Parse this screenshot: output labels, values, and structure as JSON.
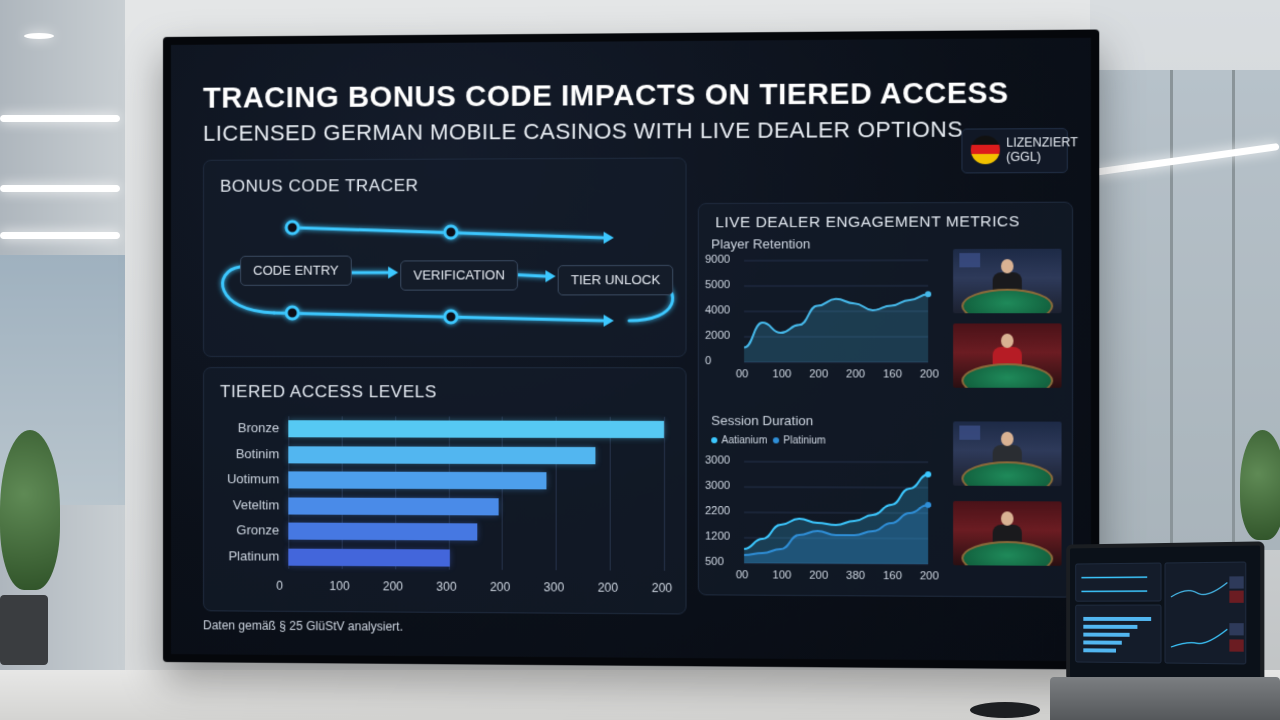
{
  "dashboard": {
    "title": "TRACING BONUS CODE IMPACTS ON TIERED ACCESS",
    "subtitle": "LICENSED GERMAN MOBILE CASINOS WITH LIVE DEALER OPTIONS",
    "badge": {
      "line1": "LIZENZIERT",
      "line2": "(GGL)",
      "icon": "germany-flag-icon"
    },
    "footnote": "Daten gemäß § 25 GlüStV analysiert."
  },
  "bonus_tracer": {
    "title": "BONUS CODE TRACER",
    "steps": [
      "CODE ENTRY",
      "VERIFICATION",
      "TIER UNLOCK"
    ],
    "accent": "#3cc8ff"
  },
  "tiered_access": {
    "title": "TIERED ACCESS LEVELS",
    "chart_data": {
      "type": "bar",
      "orientation": "horizontal",
      "categories": [
        "Bronze",
        "Botinim",
        "Uotimum",
        "Veteltim",
        "Gronze",
        "Platinum"
      ],
      "values": [
        370,
        303,
        255,
        208,
        187,
        160
      ],
      "xlim": [
        0,
        370
      ],
      "tick_labels": [
        "0",
        "100",
        "200",
        "300",
        "200",
        "300",
        "200",
        "200"
      ],
      "grid": true,
      "colors": [
        "#56c9f3",
        "#52b6f0",
        "#4d9fec",
        "#4a8be8",
        "#4678e2",
        "#4366db"
      ]
    }
  },
  "live_dealer": {
    "title": "LIVE DEALER ENGAGEMENT METRICS",
    "retention": {
      "chart_data": {
        "type": "area",
        "title": "Player Retention",
        "y_tick_labels": [
          "9000",
          "5000",
          "4000",
          "2000",
          "0"
        ],
        "x_tick_labels": [
          "00",
          "100",
          "200",
          "200",
          "160",
          "200"
        ],
        "x": [
          0,
          1,
          2,
          3,
          4,
          5,
          6,
          7,
          8,
          9,
          10
        ],
        "series": [
          {
            "values": [
              1300,
              3500,
              2600,
              3300,
              5000,
              5600,
              5200,
              4600,
              5000,
              5500,
              6000
            ],
            "color": "#46b9ea"
          }
        ],
        "ylim": [
          0,
          9000
        ]
      }
    },
    "session": {
      "chart_data": {
        "type": "area",
        "title": "Session Duration",
        "legend": [
          "Aatianium",
          "Platinium"
        ],
        "y_tick_labels": [
          "3000",
          "3000",
          "2200",
          "1200",
          "500"
        ],
        "x_tick_labels": [
          "00",
          "100",
          "200",
          "380",
          "160",
          "200"
        ],
        "x": [
          0,
          1,
          2,
          3,
          4,
          5,
          6,
          7,
          8,
          9,
          10
        ],
        "series": [
          {
            "name": "Aatianium",
            "values": [
              700,
              1200,
              1900,
              2200,
              2000,
              1900,
              2100,
              2400,
              2900,
              3700,
              4400
            ],
            "color": "#3cc8ff"
          },
          {
            "name": "Platinium",
            "values": [
              400,
              500,
              700,
              1400,
              1600,
              1400,
              1400,
              1600,
              2000,
              2500,
              2900
            ],
            "color": "#2f8fd8"
          }
        ],
        "ylim": [
          0,
          5000
        ]
      }
    },
    "thumbnails": [
      "live-dealer-video-1",
      "live-dealer-video-2",
      "live-dealer-video-3",
      "live-dealer-video-4"
    ]
  }
}
